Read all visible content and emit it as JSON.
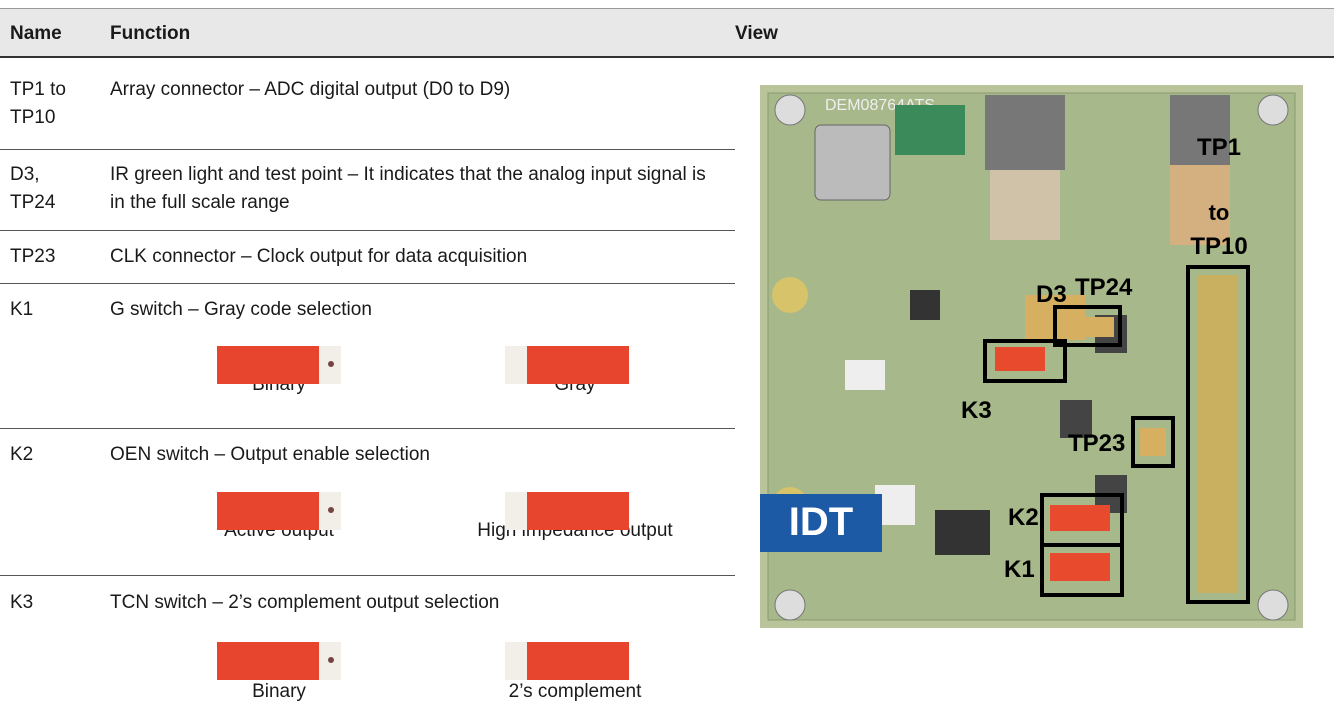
{
  "table": {
    "headers": [
      "Name",
      "Function",
      "View"
    ],
    "rows": [
      {
        "name": "TP1 to TP10",
        "function": "Array connector – ADC digital output (D0 to D9)"
      },
      {
        "name": "D3, TP24",
        "function": "IR green light and test point – It indicates that the analog input signal is in the full scale range"
      },
      {
        "name": "TP23",
        "function": "CLK connector – Clock output for data acquisition"
      },
      {
        "name": "K1",
        "function": "G switch – Gray code selection",
        "options": [
          "Binary",
          "Gray"
        ]
      },
      {
        "name": "K2",
        "function": "OEN switch – Output enable selection",
        "options": [
          "Active output",
          "High impedance output"
        ]
      },
      {
        "name": "K3",
        "function": "TCN switch – 2’s complement output selection",
        "options": [
          "Binary",
          "2’s complement"
        ]
      }
    ]
  },
  "view": {
    "board_label": "DEM08764ATS",
    "logo": "IDT",
    "labels": {
      "tp1": "TP1",
      "to": "to",
      "tp10": "TP10",
      "d3": "D3",
      "tp24": "TP24",
      "k3": "K3",
      "tp23": "TP23",
      "k2": "K2",
      "k1": "K1"
    }
  }
}
